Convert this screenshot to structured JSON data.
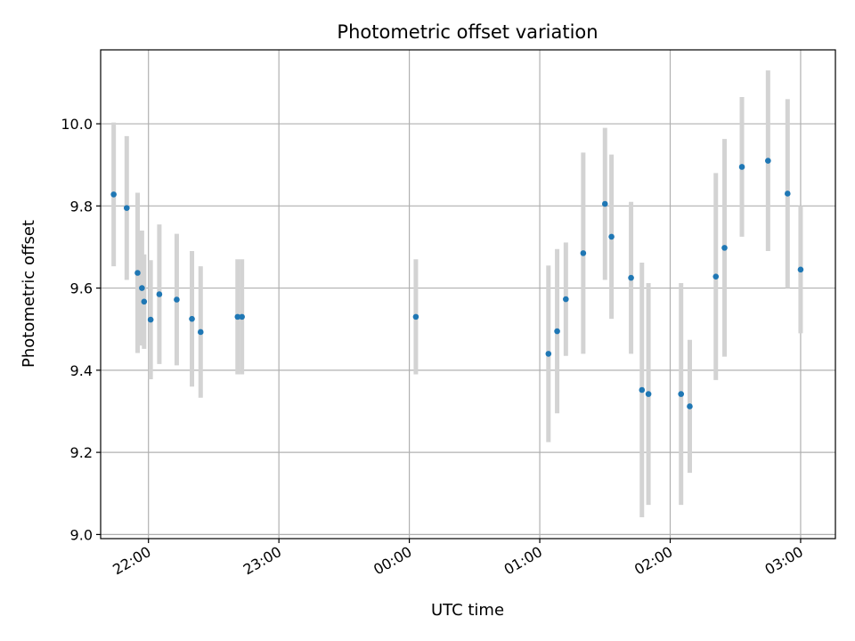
{
  "chart_data": {
    "type": "scatter",
    "title": "Photometric offset variation",
    "xlabel": "UTC time",
    "ylabel": "Photometric offset",
    "x_axis": "time",
    "x_ticks": [
      "22:00",
      "23:00",
      "00:00",
      "01:00",
      "02:00",
      "03:00"
    ],
    "y_ticks": [
      "9.0",
      "9.2",
      "9.4",
      "9.6",
      "9.8",
      "10.0"
    ],
    "xlim": [
      "21:38",
      "03:16"
    ],
    "ylim": [
      8.99,
      10.18
    ],
    "grid": true,
    "legend": "none",
    "colors": {
      "point": "#1f77b4",
      "errorbar": "#d3d3d3",
      "grid": "#b0b0b0"
    },
    "series": [
      {
        "points": [
          {
            "t": "21:44",
            "y": 9.828,
            "err": 0.175
          },
          {
            "t": "21:50",
            "y": 9.795,
            "err": 0.175
          },
          {
            "t": "21:55",
            "y": 9.637,
            "err": 0.195
          },
          {
            "t": "21:57",
            "y": 9.6,
            "err": 0.14
          },
          {
            "t": "21:58",
            "y": 9.567,
            "err": 0.115
          },
          {
            "t": "22:01",
            "y": 9.523,
            "err": 0.145
          },
          {
            "t": "22:05",
            "y": 9.585,
            "err": 0.17
          },
          {
            "t": "22:13",
            "y": 9.572,
            "err": 0.16
          },
          {
            "t": "22:20",
            "y": 9.525,
            "err": 0.165
          },
          {
            "t": "22:24",
            "y": 9.493,
            "err": 0.16
          },
          {
            "t": "22:41",
            "y": 9.53,
            "err": 0.14
          },
          {
            "t": "22:43",
            "y": 9.53,
            "err": 0.14
          },
          {
            "t": "00:03",
            "y": 9.53,
            "err": 0.14
          },
          {
            "t": "01:04",
            "y": 9.44,
            "err": 0.215
          },
          {
            "t": "01:08",
            "y": 9.495,
            "err": 0.2
          },
          {
            "t": "01:12",
            "y": 9.573,
            "err": 0.138
          },
          {
            "t": "01:20",
            "y": 9.685,
            "err": 0.245
          },
          {
            "t": "01:30",
            "y": 9.805,
            "err": 0.185
          },
          {
            "t": "01:33",
            "y": 9.725,
            "err": 0.2
          },
          {
            "t": "01:42",
            "y": 9.625,
            "err": 0.185
          },
          {
            "t": "01:47",
            "y": 9.352,
            "err": 0.31
          },
          {
            "t": "01:50",
            "y": 9.342,
            "err": 0.27
          },
          {
            "t": "02:05",
            "y": 9.342,
            "err": 0.27
          },
          {
            "t": "02:09",
            "y": 9.312,
            "err": 0.162
          },
          {
            "t": "02:21",
            "y": 9.628,
            "err": 0.252
          },
          {
            "t": "02:25",
            "y": 9.698,
            "err": 0.265
          },
          {
            "t": "02:33",
            "y": 9.895,
            "err": 0.17
          },
          {
            "t": "02:45",
            "y": 9.91,
            "err": 0.22
          },
          {
            "t": "02:54",
            "y": 9.83,
            "err": 0.23
          },
          {
            "t": "03:00",
            "y": 9.645,
            "err": 0.155
          }
        ]
      }
    ]
  }
}
